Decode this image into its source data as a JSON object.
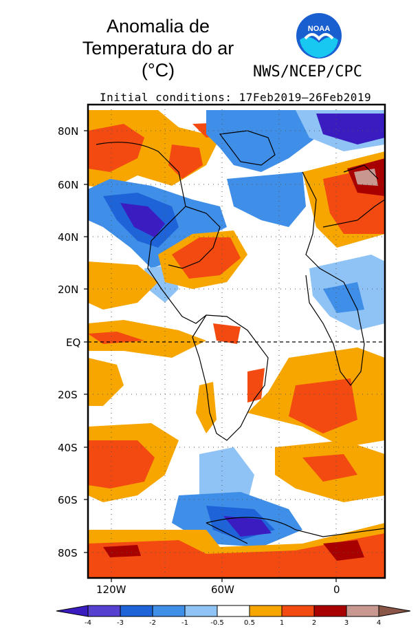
{
  "title": [
    "Anomalia de",
    "Temperatura do ar",
    "(°C)"
  ],
  "logo_text": "NOAA",
  "agency": "NWS/NCEP/CPC",
  "initial_conditions": "Initial conditions: 17Feb2019–26Feb2019",
  "lat_labels": [
    "80N",
    "60N",
    "40N",
    "20N",
    "EQ",
    "20S",
    "40S",
    "60S",
    "80S"
  ],
  "lon_labels": [
    "120W",
    "60W",
    "0"
  ],
  "colorbar": {
    "labels": [
      "-4",
      "-3",
      "-2",
      "-1",
      "-0.5",
      "0.5",
      "1",
      "2",
      "3",
      "4"
    ],
    "colors": [
      "#3b1cc0",
      "#5540d0",
      "#1e63d8",
      "#3f8ee8",
      "#8fc3f5",
      "#ffffff",
      "#f7a600",
      "#f24a10",
      "#a80000",
      "#c89890",
      "#8a5648"
    ]
  }
}
